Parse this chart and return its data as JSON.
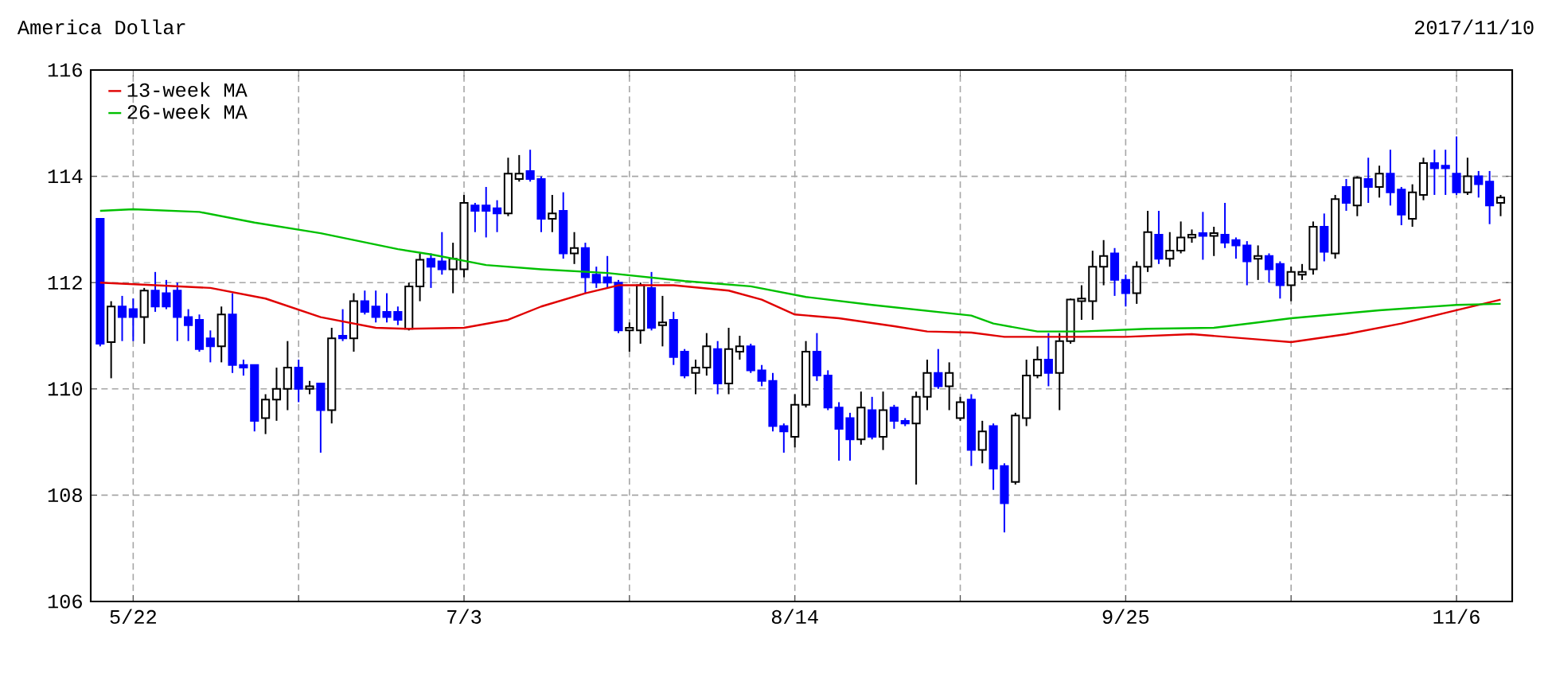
{
  "chart_data": {
    "type": "candlestick",
    "title": "America Dollar",
    "subtitle": "2017/11/10",
    "categories": [
      null,
      null,
      null,
      "5/22",
      null,
      null,
      null,
      null,
      null,
      null,
      null,
      null,
      null,
      null,
      null,
      null,
      null,
      null,
      null,
      null,
      null,
      null,
      null,
      null,
      null,
      null,
      null,
      null,
      null,
      null,
      null,
      null,
      null,
      "7/3",
      null,
      null,
      null,
      null,
      null,
      null,
      null,
      null,
      null,
      null,
      null,
      null,
      null,
      null,
      null,
      null,
      null,
      null,
      null,
      null,
      null,
      null,
      null,
      null,
      null,
      null,
      null,
      null,
      null,
      "8/14",
      null,
      null,
      null,
      null,
      null,
      null,
      null,
      null,
      null,
      null,
      null,
      null,
      null,
      null,
      null,
      null,
      null,
      null,
      null,
      null,
      null,
      null,
      null,
      null,
      null,
      null,
      null,
      null,
      null,
      "9/25",
      null,
      null,
      null,
      null,
      null,
      null,
      null,
      null,
      null,
      null,
      null,
      null,
      null,
      null,
      null,
      null,
      null,
      null,
      null,
      null,
      null,
      null,
      null,
      null,
      null,
      null,
      null,
      null,
      null,
      "11/6",
      null,
      null,
      null,
      null
    ],
    "ohlc": [
      [
        113.2,
        113.2,
        110.8,
        110.85
      ],
      [
        110.88,
        111.65,
        110.2,
        111.55
      ],
      [
        111.55,
        111.75,
        110.9,
        111.35
      ],
      [
        111.5,
        111.7,
        110.9,
        111.35
      ],
      [
        111.35,
        111.9,
        110.85,
        111.85
      ],
      [
        111.85,
        112.2,
        111.45,
        111.55
      ],
      [
        111.8,
        112.05,
        111.5,
        111.55
      ],
      [
        111.85,
        112.0,
        110.9,
        111.35
      ],
      [
        111.35,
        111.5,
        110.9,
        111.2
      ],
      [
        111.3,
        111.4,
        110.7,
        110.75
      ],
      [
        110.95,
        111.1,
        110.5,
        110.8
      ],
      [
        110.8,
        111.55,
        110.5,
        111.4
      ],
      [
        111.4,
        111.8,
        110.3,
        110.45
      ],
      [
        110.45,
        110.55,
        110.25,
        110.4
      ],
      [
        110.45,
        110.45,
        109.2,
        109.4
      ],
      [
        109.45,
        109.9,
        109.15,
        109.8
      ],
      [
        109.8,
        110.4,
        109.4,
        110.0
      ],
      [
        110.0,
        110.9,
        109.6,
        110.4
      ],
      [
        110.4,
        110.55,
        109.75,
        110.0
      ],
      [
        110.0,
        110.15,
        109.9,
        110.05
      ],
      [
        110.1,
        110.1,
        108.8,
        109.6
      ],
      [
        109.6,
        111.15,
        109.35,
        110.95
      ],
      [
        111.0,
        111.5,
        110.9,
        110.95
      ],
      [
        110.95,
        111.8,
        110.7,
        111.65
      ],
      [
        111.65,
        111.85,
        111.4,
        111.45
      ],
      [
        111.55,
        111.85,
        111.25,
        111.35
      ],
      [
        111.45,
        111.8,
        111.25,
        111.35
      ],
      [
        111.45,
        111.55,
        111.2,
        111.3
      ],
      [
        111.13,
        112.0,
        111.1,
        111.93
      ],
      [
        111.93,
        112.55,
        111.65,
        112.43
      ],
      [
        112.45,
        112.55,
        111.9,
        112.3
      ],
      [
        112.4,
        112.95,
        112.15,
        112.25
      ],
      [
        112.25,
        112.75,
        111.8,
        112.45
      ],
      [
        112.25,
        113.65,
        112.1,
        113.5
      ],
      [
        113.45,
        113.5,
        112.95,
        113.35
      ],
      [
        113.45,
        113.8,
        112.85,
        113.35
      ],
      [
        113.4,
        113.55,
        112.95,
        113.3
      ],
      [
        113.3,
        114.35,
        113.25,
        114.05
      ],
      [
        113.95,
        114.4,
        113.9,
        114.05
      ],
      [
        114.1,
        114.5,
        113.9,
        113.95
      ],
      [
        113.95,
        114.0,
        112.95,
        113.2
      ],
      [
        113.2,
        113.65,
        112.95,
        113.3
      ],
      [
        113.35,
        113.7,
        112.45,
        112.55
      ],
      [
        112.55,
        112.95,
        112.35,
        112.65
      ],
      [
        112.65,
        112.75,
        111.8,
        112.1
      ],
      [
        112.15,
        112.3,
        111.9,
        112.0
      ],
      [
        112.1,
        112.5,
        111.9,
        112.0
      ],
      [
        112.0,
        112.05,
        111.05,
        111.1
      ],
      [
        111.1,
        111.25,
        110.7,
        111.15
      ],
      [
        111.1,
        112.0,
        110.85,
        111.95
      ],
      [
        111.9,
        112.2,
        111.1,
        111.15
      ],
      [
        111.2,
        111.75,
        110.8,
        111.25
      ],
      [
        111.3,
        111.45,
        110.45,
        110.6
      ],
      [
        110.7,
        110.75,
        110.2,
        110.25
      ],
      [
        110.3,
        110.55,
        109.9,
        110.4
      ],
      [
        110.4,
        111.05,
        110.25,
        110.8
      ],
      [
        110.75,
        110.9,
        109.9,
        110.1
      ],
      [
        110.1,
        111.15,
        109.9,
        110.75
      ],
      [
        110.7,
        111.0,
        110.55,
        110.8
      ],
      [
        110.8,
        110.85,
        110.3,
        110.35
      ],
      [
        110.35,
        110.45,
        110.05,
        110.15
      ],
      [
        110.15,
        110.3,
        109.2,
        109.3
      ],
      [
        109.3,
        109.35,
        108.8,
        109.2
      ],
      [
        109.1,
        109.9,
        108.9,
        109.7
      ],
      [
        109.7,
        110.9,
        109.65,
        110.7
      ],
      [
        110.7,
        111.05,
        110.15,
        110.25
      ],
      [
        110.25,
        110.35,
        109.6,
        109.65
      ],
      [
        109.65,
        109.75,
        108.65,
        109.25
      ],
      [
        109.45,
        109.55,
        108.65,
        109.05
      ],
      [
        109.05,
        109.95,
        108.95,
        109.65
      ],
      [
        109.6,
        109.85,
        109.05,
        109.1
      ],
      [
        109.1,
        109.95,
        108.85,
        109.6
      ],
      [
        109.65,
        109.7,
        109.25,
        109.4
      ],
      [
        109.4,
        109.45,
        109.3,
        109.35
      ],
      [
        109.35,
        109.95,
        108.2,
        109.85
      ],
      [
        109.85,
        110.55,
        109.6,
        110.3
      ],
      [
        110.3,
        110.75,
        110.0,
        110.05
      ],
      [
        110.05,
        110.5,
        109.6,
        110.3
      ],
      [
        109.45,
        109.85,
        109.4,
        109.75
      ],
      [
        109.8,
        109.9,
        108.55,
        108.85
      ],
      [
        108.85,
        109.4,
        108.6,
        109.2
      ],
      [
        109.3,
        109.35,
        108.1,
        108.5
      ],
      [
        108.55,
        108.6,
        107.3,
        107.85
      ],
      [
        108.25,
        109.55,
        108.2,
        109.5
      ],
      [
        109.45,
        110.55,
        109.3,
        110.25
      ],
      [
        110.25,
        110.8,
        110.2,
        110.55
      ],
      [
        110.55,
        111.05,
        110.05,
        110.3
      ],
      [
        110.3,
        111.05,
        109.6,
        110.9
      ],
      [
        110.9,
        111.7,
        110.85,
        111.68
      ],
      [
        111.65,
        111.95,
        111.3,
        111.7
      ],
      [
        111.65,
        112.6,
        111.3,
        112.3
      ],
      [
        112.3,
        112.8,
        111.95,
        112.5
      ],
      [
        112.55,
        112.65,
        111.75,
        112.05
      ],
      [
        112.05,
        112.15,
        111.55,
        111.8
      ],
      [
        111.8,
        112.4,
        111.6,
        112.3
      ],
      [
        112.3,
        113.35,
        112.2,
        112.95
      ],
      [
        112.9,
        113.35,
        112.35,
        112.45
      ],
      [
        112.45,
        112.95,
        112.3,
        112.6
      ],
      [
        112.6,
        113.15,
        112.55,
        112.85
      ],
      [
        112.85,
        113.0,
        112.75,
        112.9
      ],
      [
        112.93,
        113.33,
        112.43,
        112.88
      ],
      [
        112.88,
        113.05,
        112.5,
        112.93
      ],
      [
        112.9,
        113.5,
        112.65,
        112.75
      ],
      [
        112.8,
        112.85,
        112.45,
        112.7
      ],
      [
        112.7,
        112.78,
        111.95,
        112.4
      ],
      [
        112.45,
        112.7,
        112.05,
        112.5
      ],
      [
        112.5,
        112.55,
        112.0,
        112.25
      ],
      [
        112.35,
        112.4,
        111.7,
        111.95
      ],
      [
        111.95,
        112.3,
        111.65,
        112.2
      ],
      [
        112.15,
        112.35,
        112.05,
        112.2
      ],
      [
        112.25,
        113.15,
        112.15,
        113.05
      ],
      [
        113.05,
        113.3,
        112.4,
        112.58
      ],
      [
        112.55,
        113.65,
        112.45,
        113.57
      ],
      [
        113.8,
        113.95,
        113.35,
        113.5
      ],
      [
        113.45,
        114.0,
        113.25,
        113.97
      ],
      [
        113.95,
        114.35,
        113.5,
        113.8
      ],
      [
        113.8,
        114.2,
        113.6,
        114.05
      ],
      [
        114.05,
        114.5,
        113.45,
        113.7
      ],
      [
        113.75,
        113.8,
        113.08,
        113.28
      ],
      [
        113.2,
        113.85,
        113.05,
        113.7
      ],
      [
        113.65,
        114.35,
        113.55,
        114.25
      ],
      [
        114.25,
        114.5,
        113.65,
        114.15
      ],
      [
        114.2,
        114.5,
        113.65,
        114.15
      ],
      [
        114.05,
        114.75,
        113.65,
        113.7
      ],
      [
        113.7,
        114.35,
        113.65,
        114.0
      ],
      [
        114.0,
        114.1,
        113.6,
        113.85
      ],
      [
        113.9,
        114.1,
        113.1,
        113.45
      ],
      [
        113.5,
        113.65,
        113.25,
        113.6
      ]
    ],
    "series": [
      {
        "name": "13-week MA",
        "type": "line",
        "color": "#e00000",
        "values": [
          112.0,
          null,
          null,
          null,
          null,
          111.95,
          null,
          null,
          null,
          null,
          111.9,
          null,
          null,
          null,
          null,
          111.7,
          null,
          null,
          null,
          null,
          111.35,
          null,
          null,
          null,
          null,
          111.15,
          null,
          null,
          111.13,
          null,
          null,
          null,
          null,
          111.15,
          null,
          null,
          null,
          111.3,
          null,
          null,
          111.55,
          null,
          null,
          null,
          111.8,
          null,
          null,
          111.95,
          null,
          null,
          null,
          null,
          111.95,
          null,
          null,
          null,
          null,
          111.85,
          null,
          null,
          111.68,
          null,
          null,
          111.4,
          null,
          null,
          null,
          111.33,
          null,
          null,
          null,
          null,
          111.18,
          null,
          null,
          111.08,
          null,
          null,
          null,
          111.06,
          null,
          null,
          110.98,
          null,
          null,
          null,
          null,
          null,
          null,
          null,
          null,
          null,
          null,
          110.98,
          null,
          null,
          null,
          null,
          null,
          111.03,
          null,
          null,
          null,
          null,
          null,
          110.93,
          null,
          null,
          110.88,
          null,
          null,
          null,
          null,
          111.03,
          null,
          null,
          null,
          null,
          111.23,
          null,
          null,
          null,
          null,
          111.48,
          null,
          null,
          null,
          111.68
        ]
      },
      {
        "name": "26-week MA",
        "type": "line",
        "color": "#00c000",
        "values": [
          113.35,
          null,
          null,
          113.38,
          null,
          null,
          null,
          null,
          null,
          113.33,
          null,
          null,
          null,
          null,
          113.13,
          null,
          null,
          null,
          null,
          null,
          112.93,
          null,
          null,
          null,
          null,
          null,
          null,
          112.63,
          null,
          null,
          112.53,
          null,
          null,
          null,
          null,
          112.33,
          null,
          null,
          null,
          null,
          112.25,
          null,
          null,
          null,
          null,
          null,
          112.18,
          null,
          null,
          null,
          null,
          null,
          null,
          112.03,
          null,
          null,
          null,
          null,
          null,
          111.93,
          null,
          null,
          null,
          null,
          111.73,
          null,
          null,
          null,
          null,
          null,
          111.58,
          null,
          null,
          null,
          null,
          null,
          null,
          null,
          null,
          111.38,
          null,
          111.23,
          null,
          null,
          null,
          111.08,
          null,
          null,
          null,
          111.08,
          null,
          null,
          null,
          null,
          null,
          111.13,
          null,
          null,
          null,
          null,
          null,
          111.15,
          null,
          null,
          null,
          111.25,
          null,
          null,
          111.33,
          null,
          null,
          null,
          null,
          null,
          null,
          null,
          111.48,
          null,
          null,
          null,
          null,
          null,
          null,
          111.58,
          null,
          null,
          null,
          111.6
        ]
      }
    ],
    "ylim": [
      106,
      116
    ],
    "yticks": [
      106,
      108,
      110,
      112,
      114,
      116
    ],
    "grid": true,
    "legend": "top left"
  }
}
